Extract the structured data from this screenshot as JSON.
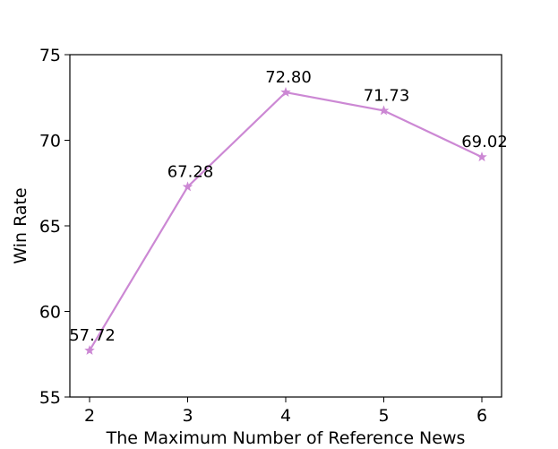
{
  "chart_data": {
    "type": "line",
    "xlabel": "The Maximum Number of Reference News",
    "ylabel": "Win Rate",
    "x": [
      2,
      3,
      4,
      5,
      6
    ],
    "xticks": [
      "2",
      "3",
      "4",
      "5",
      "6"
    ],
    "ylim": [
      55,
      75
    ],
    "yticks": [
      "55",
      "60",
      "65",
      "70",
      "75"
    ],
    "grid": false,
    "series": [
      {
        "values": [
          57.72,
          67.28,
          72.8,
          71.73,
          69.02
        ],
        "labels": [
          "57.72",
          "67.28",
          "72.80",
          "71.73",
          "69.02"
        ],
        "color": "#cc88d4",
        "marker": "star"
      }
    ]
  }
}
